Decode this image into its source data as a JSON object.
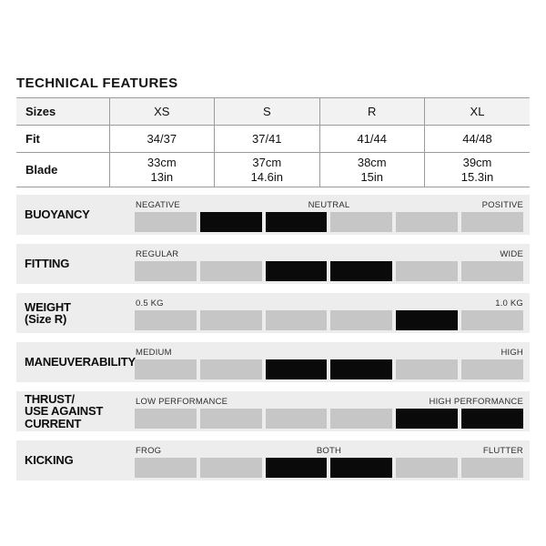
{
  "page": {
    "title": "TECHNICAL FEATURES"
  },
  "colors": {
    "row_background": "#ededed",
    "segment_gray": "#c6c6c6",
    "segment_filled": "#0a0a0a",
    "table_border": "#9b9b9b",
    "table_header_background": "#f2f2f2",
    "scale_text": "#2e2e2e"
  },
  "chart_data": [
    {
      "type": "table",
      "title": "TECHNICAL FEATURES",
      "columns": [
        "Sizes",
        "XS",
        "S",
        "R",
        "XL"
      ],
      "rows": [
        {
          "label": "Fit",
          "values": [
            "34/37",
            "37/41",
            "41/44",
            "44/48"
          ]
        },
        {
          "label": "Blade",
          "values": [
            [
              "33cm",
              "13in"
            ],
            [
              "37cm",
              "14.6in"
            ],
            [
              "38cm",
              "15in"
            ],
            [
              "39cm",
              "15.3in"
            ]
          ]
        }
      ]
    },
    {
      "type": "bar",
      "subtype": "segmented-rating-scale",
      "segments_total": 6,
      "series": [
        {
          "name_lines": [
            "BUOYANCY"
          ],
          "scale": {
            "left": "NEGATIVE",
            "center": "NEUTRAL",
            "right": "POSITIVE"
          },
          "filled_segments": [
            2,
            3
          ]
        },
        {
          "name_lines": [
            "FITTING"
          ],
          "scale": {
            "left": "REGULAR",
            "right": "WIDE"
          },
          "filled_segments": [
            3,
            4
          ]
        },
        {
          "name_lines": [
            "WEIGHT",
            "(Size R)"
          ],
          "scale": {
            "left": "0.5 KG",
            "right": "1.0 KG"
          },
          "filled_segments": [
            5
          ]
        },
        {
          "name_lines": [
            "MANEUVERABILITY"
          ],
          "scale": {
            "left": "MEDIUM",
            "right": "HIGH"
          },
          "filled_segments": [
            3,
            4
          ]
        },
        {
          "name_lines": [
            "THRUST/",
            "USE AGAINST",
            "CURRENT"
          ],
          "scale": {
            "left": "LOW PERFORMANCE",
            "right": "HIGH PERFORMANCE"
          },
          "filled_segments": [
            5,
            6
          ]
        },
        {
          "name_lines": [
            "KICKING"
          ],
          "scale": {
            "left": "FROG",
            "center": "BOTH",
            "right": "FLUTTER"
          },
          "filled_segments": [
            3,
            4
          ]
        }
      ]
    }
  ]
}
